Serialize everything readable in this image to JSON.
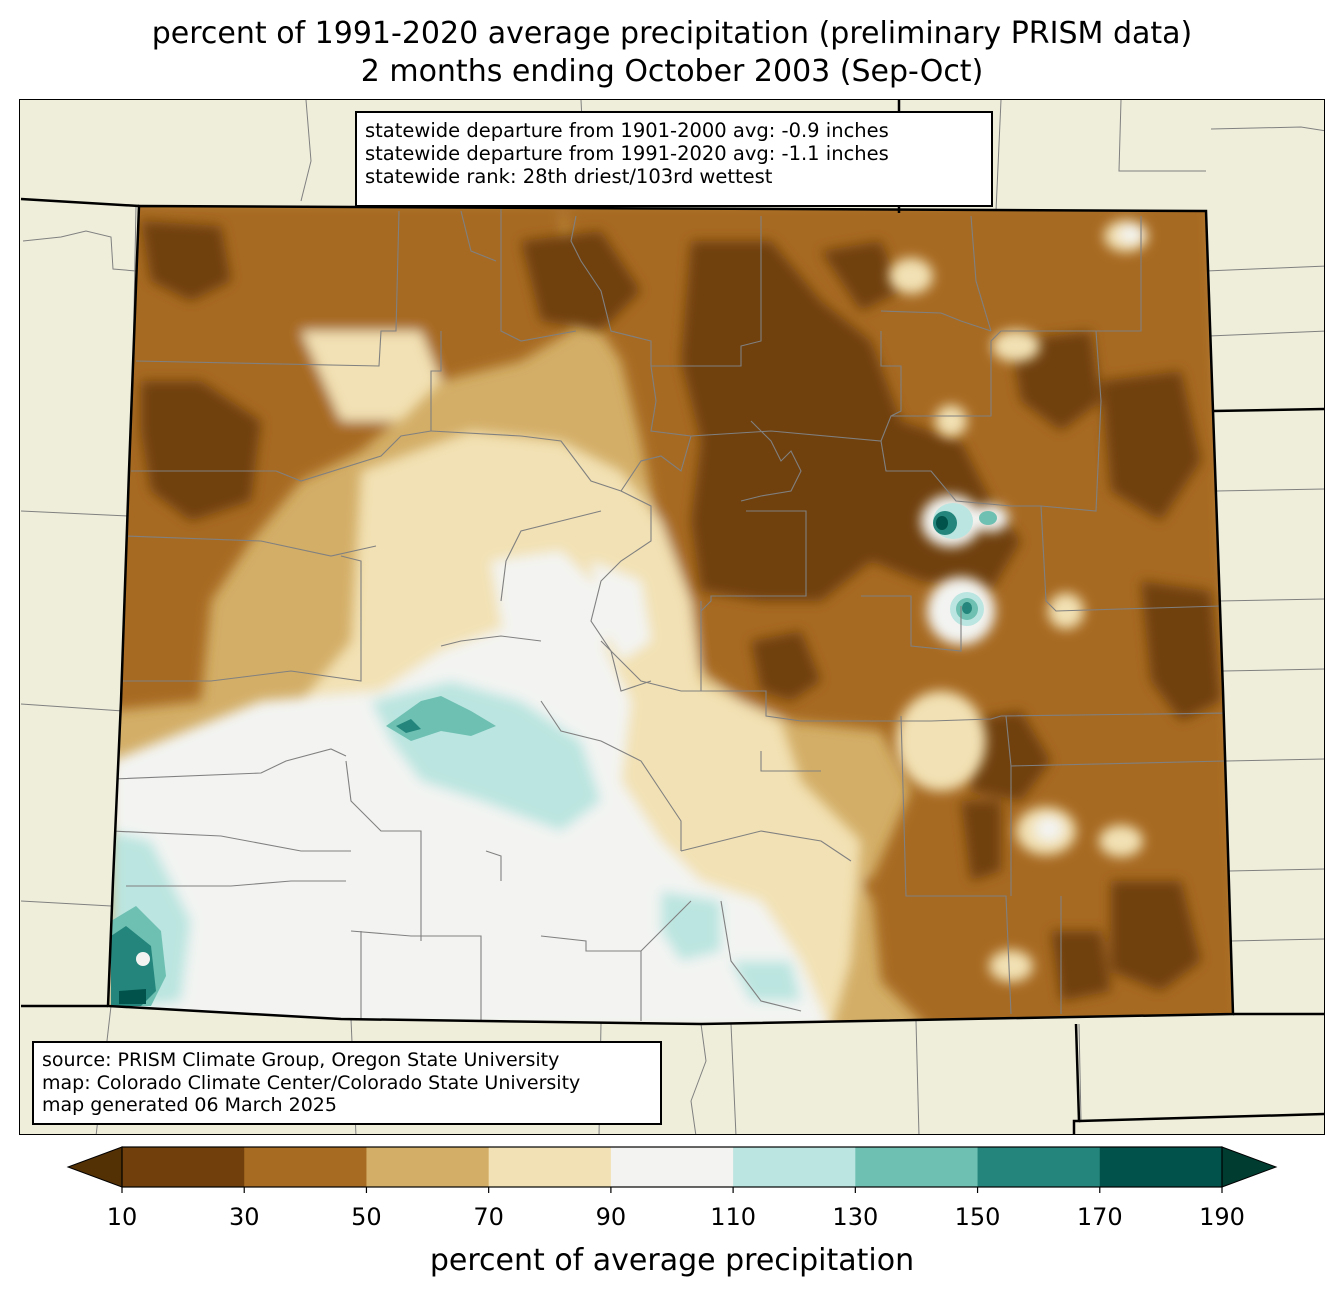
{
  "title": {
    "line1": "percent of 1991-2020 average precipitation (preliminary PRISM data)",
    "line2": "2 months ending October 2003 (Sep-Oct)"
  },
  "stats_box": {
    "lines": [
      "statewide departure from 1901-2000 avg: -0.9 inches",
      "statewide departure from 1991-2020 avg: -1.1 inches",
      "statewide rank: 28th driest/103rd wettest"
    ]
  },
  "source_box": {
    "lines": [
      "source: PRISM Climate Group, Oregon State University",
      "map: Colorado Climate Center/Colorado State University",
      "map generated 06 March 2025"
    ]
  },
  "colorbar": {
    "label": "percent of average precipitation",
    "ticks": [
      "10",
      "30",
      "50",
      "70",
      "90",
      "110",
      "130",
      "150",
      "170",
      "190"
    ],
    "colors": [
      "#703f0c",
      "#a76b22",
      "#d3ae67",
      "#f2e1b4",
      "#f3f4f2",
      "#bbe5e0",
      "#6ec0b2",
      "#23857b",
      "#00524a"
    ],
    "under_color": "#543005",
    "over_color": "#003c30"
  },
  "map": {
    "state": "Colorado",
    "background_color": "#efeedb",
    "county_line_color": "#808080",
    "state_line_color": "#000000"
  }
}
